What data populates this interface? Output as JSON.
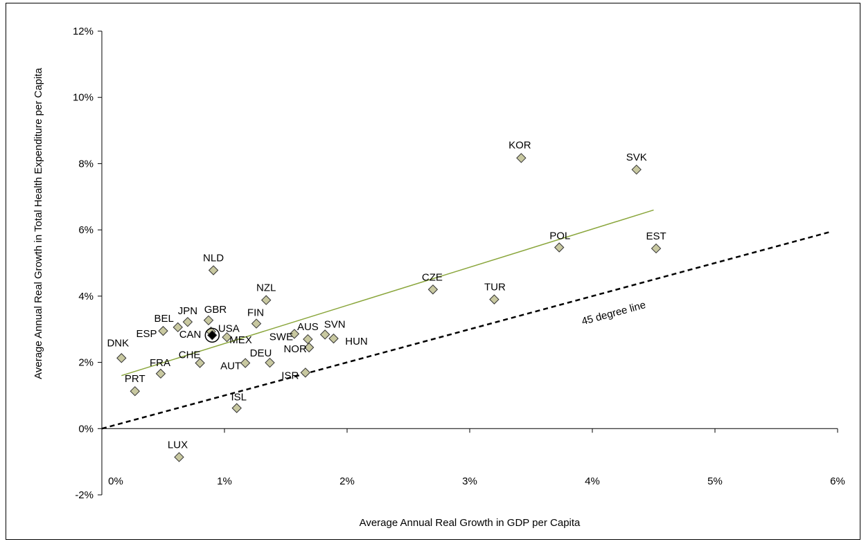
{
  "chart_data": {
    "type": "scatter",
    "xlabel": "Average Annual Real Growth in GDP per Capita",
    "ylabel": "Average Annual Real Growth in Total Health Expenditure per Capita",
    "xlim": [
      0,
      6
    ],
    "ylim": [
      -2,
      12
    ],
    "x_ticks": [
      {
        "value": 0,
        "label": "0%"
      },
      {
        "value": 1,
        "label": "1%"
      },
      {
        "value": 2,
        "label": "2%"
      },
      {
        "value": 3,
        "label": "3%"
      },
      {
        "value": 4,
        "label": "4%"
      },
      {
        "value": 5,
        "label": "5%"
      },
      {
        "value": 6,
        "label": "6%"
      }
    ],
    "y_ticks": [
      {
        "value": -2,
        "label": "-2%"
      },
      {
        "value": 0,
        "label": "0%"
      },
      {
        "value": 2,
        "label": "2%"
      },
      {
        "value": 4,
        "label": "4%"
      },
      {
        "value": 6,
        "label": "6%"
      },
      {
        "value": 8,
        "label": "8%"
      },
      {
        "value": 10,
        "label": "10%"
      },
      {
        "value": 12,
        "label": "12%"
      }
    ],
    "grid": false,
    "marker_color": "#c8c8a0",
    "highlight_color": "#000000",
    "trend_color": "#8aa63c",
    "points": [
      {
        "label": "DNK",
        "x": 0.16,
        "y": 2.13
      },
      {
        "label": "PRT",
        "x": 0.27,
        "y": 1.13
      },
      {
        "label": "FRA",
        "x": 0.48,
        "y": 1.66
      },
      {
        "label": "ESP",
        "x": 0.5,
        "y": 2.95
      },
      {
        "label": "BEL",
        "x": 0.62,
        "y": 3.06
      },
      {
        "label": "JPN",
        "x": 0.7,
        "y": 3.22
      },
      {
        "label": "CHE",
        "x": 0.8,
        "y": 1.98
      },
      {
        "label": "GBR",
        "x": 0.87,
        "y": 3.27
      },
      {
        "label": "CAN",
        "x": 0.89,
        "y": 2.93
      },
      {
        "label": "USA",
        "x": 0.9,
        "y": 2.82,
        "highlight": true
      },
      {
        "label": "NLD",
        "x": 0.91,
        "y": 4.78
      },
      {
        "label": "MEX",
        "x": 1.02,
        "y": 2.76
      },
      {
        "label": "ISL",
        "x": 1.1,
        "y": 0.62
      },
      {
        "label": "AUT",
        "x": 1.17,
        "y": 1.98
      },
      {
        "label": "FIN",
        "x": 1.26,
        "y": 3.17
      },
      {
        "label": "NZL",
        "x": 1.34,
        "y": 3.88
      },
      {
        "label": "DEU",
        "x": 1.37,
        "y": 1.99
      },
      {
        "label": "SWE",
        "x": 1.57,
        "y": 2.86
      },
      {
        "label": "ISR",
        "x": 1.66,
        "y": 1.69
      },
      {
        "label": "AUS",
        "x": 1.68,
        "y": 2.7
      },
      {
        "label": "NOR",
        "x": 1.69,
        "y": 2.45
      },
      {
        "label": "SVN",
        "x": 1.82,
        "y": 2.84
      },
      {
        "label": "HUN",
        "x": 1.89,
        "y": 2.72
      },
      {
        "label": "CZE",
        "x": 2.7,
        "y": 4.2
      },
      {
        "label": "TUR",
        "x": 3.2,
        "y": 3.9
      },
      {
        "label": "KOR",
        "x": 3.42,
        "y": 8.17
      },
      {
        "label": "POL",
        "x": 3.73,
        "y": 5.47
      },
      {
        "label": "SVK",
        "x": 4.36,
        "y": 7.82
      },
      {
        "label": "EST",
        "x": 4.52,
        "y": 5.44
      },
      {
        "label": "LUX",
        "x": 0.63,
        "y": -0.86
      }
    ],
    "trend_line": {
      "x": [
        0.16,
        4.5
      ],
      "y": [
        1.6,
        6.6
      ]
    },
    "reference_line": {
      "label": "45 degree line",
      "x": [
        0,
        5.95
      ],
      "y": [
        0,
        5.95
      ]
    }
  }
}
